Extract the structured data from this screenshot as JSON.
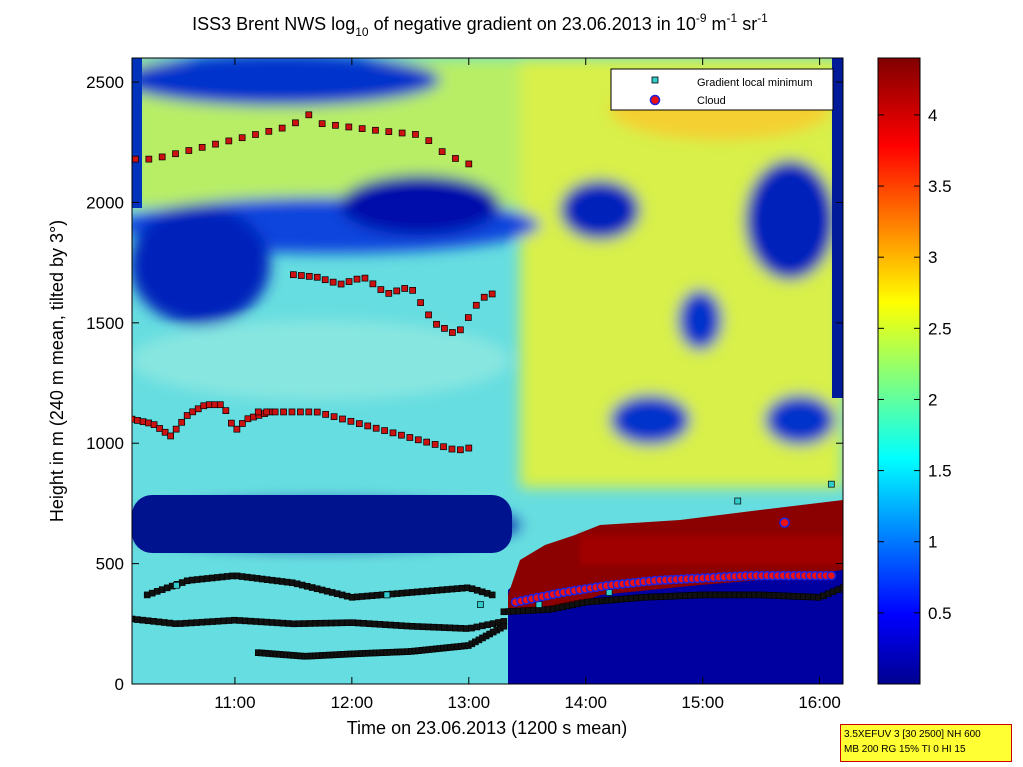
{
  "chart_data": {
    "type": "heatmap",
    "title": {
      "part1": "ISS3 Brent NWS log",
      "sub": "10",
      "part2": " of negative gradient on 23.06.2013 in 10",
      "sup1": "-9",
      "part3": " m",
      "sup2": "-1",
      "part4": " sr",
      "sup3": "-1"
    },
    "xlabel": "Time on 23.06.2013 (1200 s mean)",
    "ylabel": "Height in m (240 m mean, tilted by 3°)",
    "xlim": [
      10.12,
      16.2
    ],
    "ylim": [
      0,
      2600
    ],
    "x_ticks": [
      {
        "value": 11,
        "label": "11:00"
      },
      {
        "value": 12,
        "label": "12:00"
      },
      {
        "value": 13,
        "label": "13:00"
      },
      {
        "value": 14,
        "label": "14:00"
      },
      {
        "value": 15,
        "label": "15:00"
      },
      {
        "value": 16,
        "label": "16:00"
      }
    ],
    "y_ticks": [
      {
        "value": 0,
        "label": "0"
      },
      {
        "value": 500,
        "label": "500"
      },
      {
        "value": 1000,
        "label": "1000"
      },
      {
        "value": 1500,
        "label": "1500"
      },
      {
        "value": 2000,
        "label": "2000"
      },
      {
        "value": 2500,
        "label": "2500"
      }
    ],
    "colorbar": {
      "range": [
        0,
        4.4
      ],
      "ticks": [
        {
          "value": 0.5,
          "label": "0.5"
        },
        {
          "value": 1,
          "label": "1"
        },
        {
          "value": 1.5,
          "label": "1.5"
        },
        {
          "value": 2,
          "label": "2"
        },
        {
          "value": 2.5,
          "label": "2.5"
        },
        {
          "value": 3,
          "label": "3"
        },
        {
          "value": 3.5,
          "label": "3.5"
        },
        {
          "value": 4,
          "label": "4"
        }
      ]
    },
    "legend": {
      "placement": "top-right",
      "entries": [
        {
          "name": "Gradient local minimum",
          "marker": "square",
          "color": "#33cccc"
        },
        {
          "name": "Cloud",
          "marker": "circle",
          "color": "#ee1111",
          "edge": "#2222dd"
        }
      ]
    },
    "series": [
      {
        "name": "Gradient local minimum",
        "x": [
          10.5,
          12.3,
          13.1,
          13.6,
          14.2,
          15.3,
          16.1
        ],
        "y": [
          410,
          370,
          330,
          330,
          380,
          760,
          830
        ]
      },
      {
        "name": "Cloud",
        "x": [
          13.4,
          13.8,
          14.2,
          14.6,
          15.0,
          15.4,
          15.7,
          15.8,
          16.1
        ],
        "y": [
          340,
          380,
          410,
          430,
          440,
          450,
          670,
          450,
          450
        ]
      }
    ],
    "marker_traces": [
      {
        "x": [
          10.12,
          10.5,
          11.0,
          11.5,
          12.0,
          12.5,
          13.0,
          13.3
        ],
        "y": [
          270,
          250,
          265,
          250,
          255,
          240,
          230,
          260
        ]
      },
      {
        "x": [
          11.2,
          11.6,
          12.0,
          12.5,
          13.0,
          13.3
        ],
        "y": [
          130,
          115,
          125,
          135,
          160,
          240
        ]
      },
      {
        "x": [
          10.25,
          10.6,
          11.0,
          11.5,
          12.0,
          12.5,
          13.0,
          13.2
        ],
        "y": [
          370,
          430,
          450,
          420,
          360,
          380,
          400,
          370
        ]
      },
      {
        "x": [
          13.3,
          13.7,
          14.0,
          14.5,
          15.0,
          15.5,
          16.0,
          16.2
        ],
        "y": [
          300,
          310,
          340,
          360,
          370,
          370,
          360,
          400
        ]
      }
    ],
    "cloud_points": [
      {
        "x": [
          10.12,
          10.3,
          10.45,
          10.6,
          10.75,
          10.9,
          11.0,
          11.1,
          11.3
        ],
        "y": [
          1100,
          1080,
          1030,
          1120,
          1160,
          1160,
          1050,
          1100,
          1130
        ]
      },
      {
        "x": [
          11.5,
          11.7,
          11.9,
          12.1,
          12.3,
          12.5,
          12.7,
          12.9,
          13.1,
          13.2
        ],
        "y": [
          1700,
          1690,
          1660,
          1690,
          1620,
          1650,
          1500,
          1450,
          1600,
          1620
        ]
      },
      {
        "x": [
          10.15,
          10.3,
          11.5,
          11.6,
          11.7,
          12.2,
          12.6,
          12.8,
          13.0
        ],
        "y": [
          2180,
          2180,
          2320,
          2380,
          2330,
          2300,
          2280,
          2200,
          2160
        ]
      },
      {
        "x": [
          11.2,
          11.7,
          12.9,
          13.0
        ],
        "y": [
          1130,
          1130,
          970,
          980
        ]
      }
    ]
  },
  "info_box": {
    "line1": "3.5XEFUV 3 [30 2500] NH 600",
    "line2": "MB 200 RG 15% TI 0 HI 15"
  }
}
